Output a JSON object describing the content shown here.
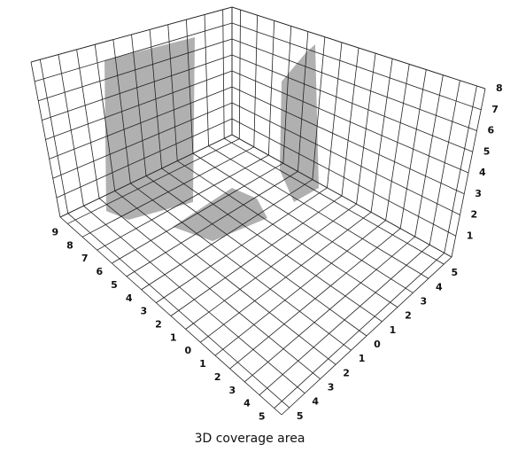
{
  "chart_data": {
    "type": "surface3d",
    "title": "3D coverage area",
    "xlim": [
      -9.5,
      5.5
    ],
    "xticks": [
      {
        "value": -9,
        "label": "9"
      },
      {
        "value": -8,
        "label": "8"
      },
      {
        "value": -7,
        "label": "7"
      },
      {
        "value": -6,
        "label": "6"
      },
      {
        "value": -5,
        "label": "5"
      },
      {
        "value": -4,
        "label": "4"
      },
      {
        "value": -3,
        "label": "3"
      },
      {
        "value": -2,
        "label": "2"
      },
      {
        "value": -1,
        "label": "1"
      },
      0,
      1,
      2,
      3,
      4,
      5
    ],
    "ylim": [
      -5.5,
      5.5
    ],
    "yticks": [
      {
        "value": -5,
        "label": "5"
      },
      {
        "value": -4,
        "label": "4"
      },
      {
        "value": -3,
        "label": "3"
      },
      {
        "value": -2,
        "label": "2"
      },
      {
        "value": -1,
        "label": "1"
      },
      0,
      1,
      2,
      3,
      4,
      5
    ],
    "zlim": [
      0,
      8
    ],
    "zticks": [
      1,
      2,
      3,
      4,
      5,
      6,
      7,
      8
    ],
    "grid": true
  }
}
